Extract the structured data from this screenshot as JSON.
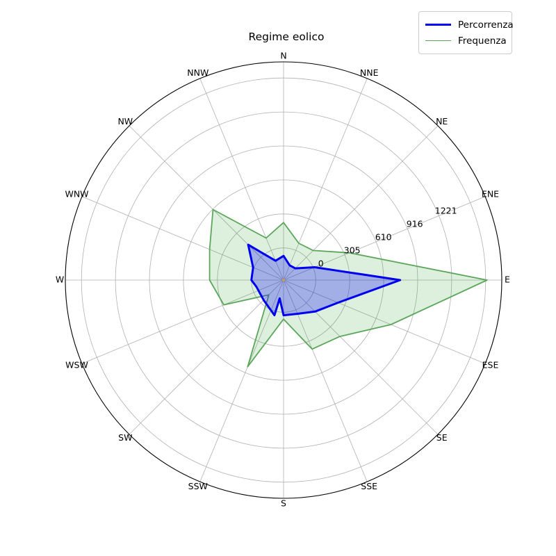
{
  "title": "Regime eolico",
  "legend": {
    "items": [
      {
        "label": "Percorrenza",
        "color": "#0000ee",
        "line_width": 3.2
      },
      {
        "label": "Frequenza",
        "color": "#5ca65c",
        "line_width": 1.8
      }
    ]
  },
  "chart_data": {
    "type": "radar",
    "title": "Regime eolico",
    "direction_labels": [
      "N",
      "NNE",
      "NE",
      "ENE",
      "E",
      "ESE",
      "SE",
      "SSE",
      "S",
      "SSW",
      "SW",
      "WSW",
      "W",
      "WNW",
      "NW",
      "NNW"
    ],
    "r_tick_labels": [
      "0",
      "305",
      "610",
      "916",
      "1221"
    ],
    "r_tick_step": 305.33,
    "grid_circle_count": 6,
    "outer_ring_color": "#000000",
    "grid_color": "#b0b0b0",
    "rlabel_angle_deg": 67,
    "center_dot_color": "#c49a6c",
    "series": [
      {
        "name": "Percorrenza",
        "line_color": "#0000ee",
        "fill_color": "rgba(0,0,255,0.27)",
        "line_width": 3.0,
        "points": [
          {
            "a": 0.0,
            "v": -72
          },
          {
            "a": 22.5,
            "v": -146
          },
          {
            "a": 45.0,
            "v": -140
          },
          {
            "a": 67.5,
            "v": 13
          },
          {
            "a": 90.0,
            "v": 758
          },
          {
            "a": 112.5,
            "v": 241
          },
          {
            "a": 135.0,
            "v": 111
          },
          {
            "a": 157.5,
            "v": 39
          },
          {
            "a": 180.0,
            "v": 27
          },
          {
            "a": 192.0,
            "v": -121
          },
          {
            "a": 194.5,
            "v": 37
          },
          {
            "a": 225.0,
            "v": -36
          },
          {
            "a": 256.0,
            "v": -38
          },
          {
            "a": 270.0,
            "v": 0
          },
          {
            "a": 292.5,
            "v": 7
          },
          {
            "a": 315.0,
            "v": 160
          },
          {
            "a": 337.5,
            "v": -101
          }
        ]
      },
      {
        "name": "Frequenza",
        "line_color": "#5ca65c",
        "fill_color": "rgba(44,160,44,0.16)",
        "line_width": 1.8,
        "points": [
          {
            "a": 0.0,
            "v": 228
          },
          {
            "a": 22.5,
            "v": 69
          },
          {
            "a": 45.0,
            "v": 87
          },
          {
            "a": 67.5,
            "v": 351
          },
          {
            "a": 90.0,
            "v": 1539
          },
          {
            "a": 112.5,
            "v": 755
          },
          {
            "a": 135.0,
            "v": 427
          },
          {
            "a": 157.5,
            "v": 382
          },
          {
            "a": 180.0,
            "v": 62
          },
          {
            "a": 202.5,
            "v": 554
          },
          {
            "a": 225.0,
            "v": -102
          },
          {
            "a": 247.5,
            "v": 292
          },
          {
            "a": 270.0,
            "v": 375
          },
          {
            "a": 292.5,
            "v": 430
          },
          {
            "a": 315.0,
            "v": 607
          },
          {
            "a": 337.5,
            "v": 120
          }
        ]
      }
    ]
  }
}
